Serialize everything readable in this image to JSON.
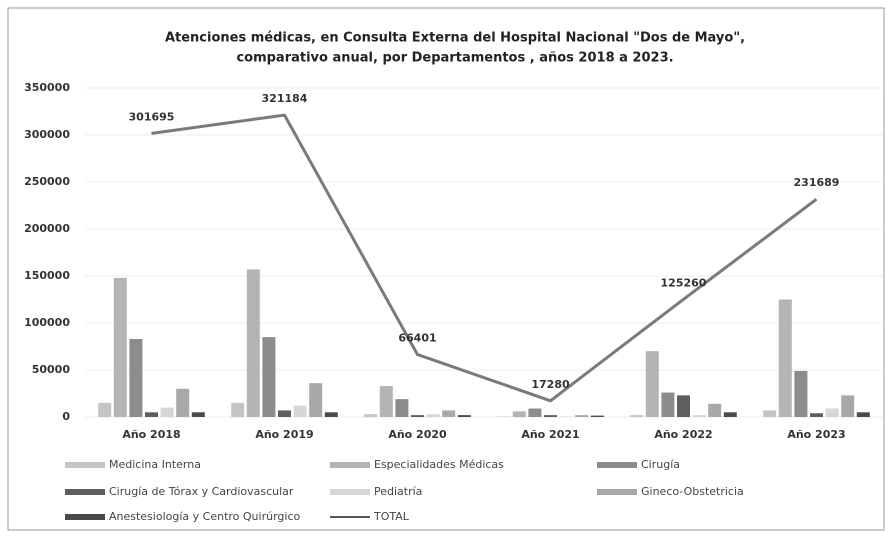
{
  "chart_data": {
    "type": "bar",
    "title": [
      "Atenciones médicas, en Consulta Externa del Hospital Nacional \"Dos de Mayo\",",
      "comparativo anual, por Departamentos , años 2018 a 2023."
    ],
    "categories": [
      "Año 2018",
      "Año 2019",
      "Año 2020",
      "Año 2021",
      "Año 2022",
      "Año 2023"
    ],
    "series": [
      {
        "name": "Medicina Interna",
        "color": "#c4c4c4",
        "values": [
          15000,
          15000,
          3000,
          500,
          2000,
          7000
        ]
      },
      {
        "name": "Especialidades Médicas",
        "color": "#b4b4b4",
        "values": [
          148000,
          157000,
          33000,
          6000,
          70000,
          125000
        ]
      },
      {
        "name": "Cirugía",
        "color": "#8c8c8c",
        "values": [
          83000,
          85000,
          19000,
          9000,
          26000,
          49000
        ]
      },
      {
        "name": "Cirugía de Tórax y Cardiovascular",
        "color": "#5e5e5e",
        "values": [
          5000,
          7000,
          2000,
          2000,
          23000,
          4000
        ]
      },
      {
        "name": "Pediatría",
        "color": "#d6d6d6",
        "values": [
          10000,
          12000,
          3000,
          500,
          2000,
          9000
        ]
      },
      {
        "name": "Gineco-Obstetricia",
        "color": "#a8a8a8",
        "values": [
          30000,
          36000,
          7000,
          2000,
          14000,
          23000
        ]
      },
      {
        "name": "Anestesiología y Centro Quirúrgico",
        "color": "#4a4a4a",
        "values": [
          5000,
          5000,
          2000,
          1500,
          5000,
          5000
        ]
      },
      {
        "name": "TOTAL",
        "type": "line",
        "color": "#7a7a7a",
        "values": [
          301695,
          321184,
          66401,
          17280,
          125260,
          231689
        ]
      }
    ],
    "ylim": [
      0,
      350000
    ],
    "yticks": [
      0,
      50000,
      100000,
      150000,
      200000,
      250000,
      300000,
      350000
    ],
    "grid": true
  }
}
